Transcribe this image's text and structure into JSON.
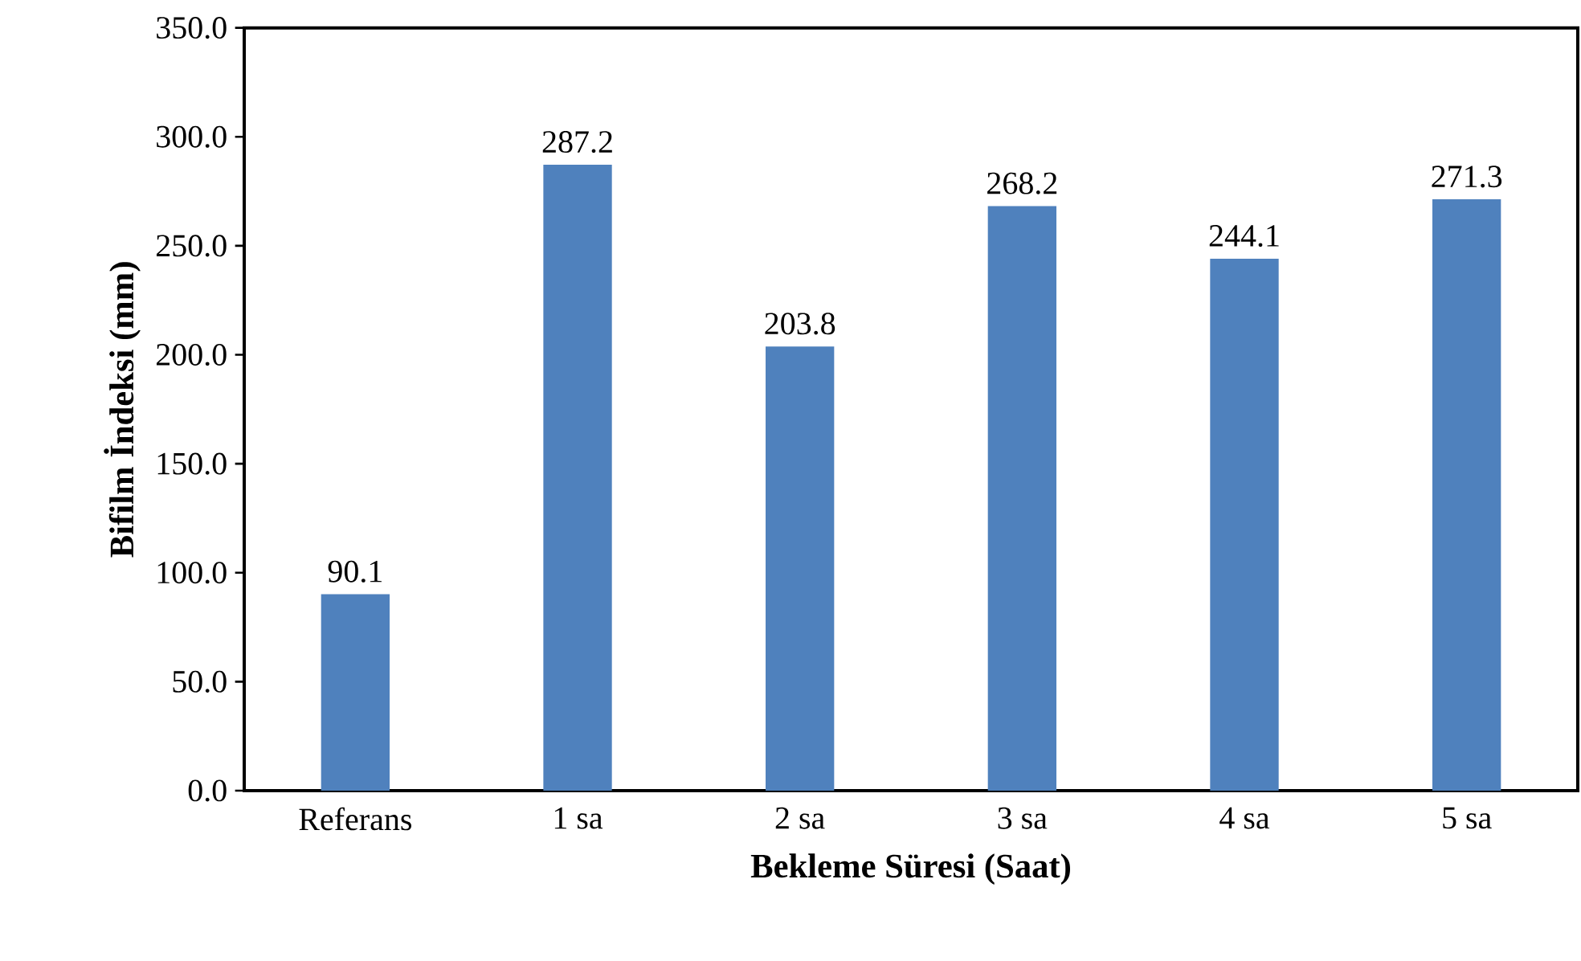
{
  "chart_data": {
    "type": "bar",
    "xlabel": "Bekleme Süresi (Saat)",
    "ylabel": "Bifilm İndeksi (mm)",
    "categories": [
      "Referans",
      "1 sa",
      "2 sa",
      "3 sa",
      "4 sa",
      "5 sa"
    ],
    "values": [
      90.1,
      287.2,
      203.8,
      268.2,
      244.1,
      271.3
    ],
    "color": "#4f81bd",
    "ylim": [
      0,
      350
    ],
    "yticks": [
      {
        "value": 0,
        "label": "0.0"
      },
      {
        "value": 50,
        "label": "50.0"
      },
      {
        "value": 100,
        "label": "100.0"
      },
      {
        "value": 150,
        "label": "150.0"
      },
      {
        "value": 200,
        "label": "200.0"
      },
      {
        "value": 250,
        "label": "250.0"
      },
      {
        "value": 300,
        "label": "300.0"
      },
      {
        "value": 350,
        "label": "350.0"
      }
    ],
    "data_labels": true,
    "grid": false
  }
}
